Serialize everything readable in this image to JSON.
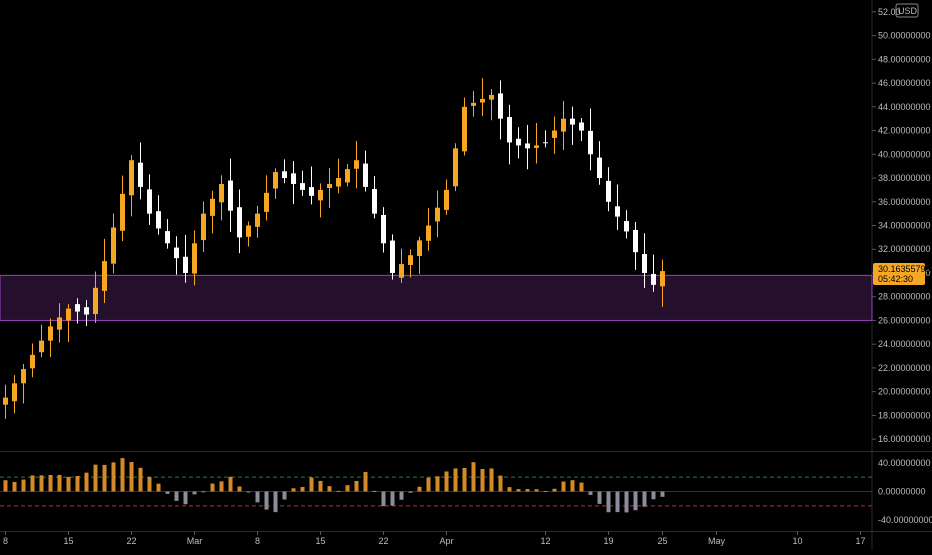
{
  "colors": {
    "background": "#000000",
    "bull": "#f5a623",
    "bear": "#ffffff",
    "zone_fill": "#24102c",
    "zone_stroke": "#9a3fc4",
    "osc_pos": "#d58a2a",
    "osc_neg": "#8c8c9a",
    "osc_level_upper": "#2e7d32",
    "osc_level_lower": "#c62828",
    "axis_text": "#bdbdbd",
    "price_tag_bg": "#f5a623",
    "price_tag_text": "#000000",
    "divider": "#2a2a2a"
  },
  "price_tag": {
    "price": "30.16355799",
    "countdown": "05:42:30"
  },
  "currency_badge": "USD",
  "chart_data": [
    {
      "type": "candlestick",
      "title": "",
      "currency": "USD",
      "ylim": [
        15,
        53
      ],
      "y_ticks": [
        16,
        18,
        20,
        22,
        24,
        26,
        28,
        30,
        32,
        34,
        36,
        38,
        40,
        42,
        44,
        46,
        48,
        50,
        52
      ],
      "y_tick_labels": [
        "16.00000000",
        "18.00000000",
        "20.00000000",
        "22.00000000",
        "24.00000000",
        "26.00000000",
        "28.00000000",
        "30.00000000",
        "32.00000000",
        "34.00000000",
        "36.00000000",
        "38.00000000",
        "40.00000000",
        "42.00000000",
        "44.00000000",
        "46.00000000",
        "48.00000000",
        "50.00000000",
        "52.00"
      ],
      "x_tick_labels": [
        "8",
        "15",
        "22",
        "Mar",
        "8",
        "15",
        "22",
        "Apr",
        "12",
        "19",
        "25",
        "May",
        "10",
        "17"
      ],
      "x_tick_index": [
        0,
        7,
        14,
        21,
        28,
        35,
        42,
        49,
        60,
        67,
        73,
        79,
        88,
        95
      ],
      "candles_start_date": "2021-02-08",
      "close_anchors": [
        [
          0,
          19.5
        ],
        [
          5,
          25.5
        ],
        [
          7,
          27
        ],
        [
          9,
          26.5
        ],
        [
          11,
          31
        ],
        [
          14,
          39.5
        ],
        [
          16,
          35
        ],
        [
          18,
          32.5
        ],
        [
          20,
          30
        ],
        [
          22,
          35
        ],
        [
          24,
          37.5
        ],
        [
          26,
          33
        ],
        [
          28,
          35
        ],
        [
          30,
          38.5
        ],
        [
          32,
          37.5
        ],
        [
          34,
          36.5
        ],
        [
          37,
          38
        ],
        [
          39,
          39.5
        ],
        [
          41,
          35
        ],
        [
          43,
          30
        ],
        [
          45,
          31.5
        ],
        [
          47,
          34
        ],
        [
          49,
          37
        ],
        [
          51,
          44
        ],
        [
          54,
          45
        ],
        [
          56,
          41
        ],
        [
          58,
          40.5
        ],
        [
          60,
          41
        ],
        [
          62,
          43
        ],
        [
          64,
          42
        ],
        [
          65,
          40
        ],
        [
          67,
          36
        ],
        [
          69,
          33.5
        ],
        [
          71,
          30
        ],
        [
          72,
          29
        ],
        [
          73,
          30.16
        ]
      ],
      "support_zone": [
        26,
        29.8
      ],
      "last_price": 30.16355799
    },
    {
      "type": "bar",
      "title": "oscillator",
      "ylim": [
        -55,
        55
      ],
      "y_ticks": [
        40,
        0,
        -40
      ],
      "y_tick_labels": [
        "40.00000000",
        "0.00000000",
        "-40.00000000"
      ],
      "levels": [
        20,
        -20
      ],
      "anchors": [
        [
          0,
          15
        ],
        [
          4,
          25
        ],
        [
          7,
          22
        ],
        [
          10,
          35
        ],
        [
          14,
          45
        ],
        [
          17,
          12
        ],
        [
          20,
          -20
        ],
        [
          22,
          5
        ],
        [
          25,
          22
        ],
        [
          28,
          -15
        ],
        [
          30,
          -30
        ],
        [
          32,
          0
        ],
        [
          34,
          15
        ],
        [
          37,
          5
        ],
        [
          40,
          25
        ],
        [
          42,
          -25
        ],
        [
          44,
          -10
        ],
        [
          46,
          10
        ],
        [
          49,
          25
        ],
        [
          52,
          40
        ],
        [
          54,
          30
        ],
        [
          56,
          5
        ],
        [
          58,
          5
        ],
        [
          60,
          0
        ],
        [
          62,
          15
        ],
        [
          64,
          10
        ],
        [
          65,
          -5
        ],
        [
          67,
          -30
        ],
        [
          69,
          -25
        ],
        [
          71,
          -20
        ],
        [
          73,
          -10
        ]
      ]
    }
  ]
}
